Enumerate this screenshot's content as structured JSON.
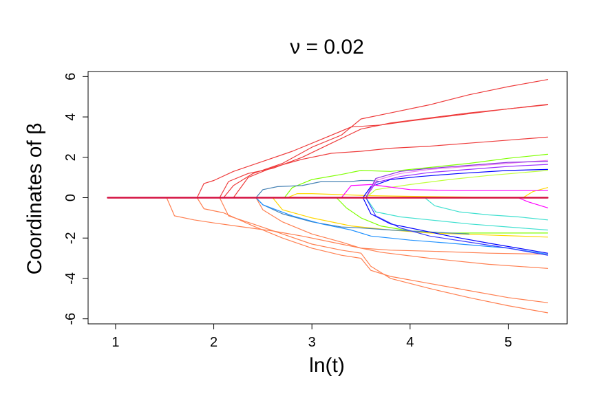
{
  "chart_data": {
    "type": "line",
    "title": "ν = 0.02",
    "xlabel": "ln(t)",
    "ylabel": "Coordinates of β",
    "xlim": [
      0.72,
      5.6
    ],
    "ylim": [
      -6.25,
      6.25
    ],
    "xticks": [
      1,
      2,
      3,
      4,
      5
    ],
    "xtick_labels": [
      "1",
      "2",
      "3",
      "4",
      "5"
    ],
    "yticks": [
      -6,
      -4,
      -2,
      0,
      2,
      4,
      6
    ],
    "ytick_labels": [
      "-6",
      "-4",
      "-2",
      "0",
      "2",
      "4",
      "6"
    ],
    "grid": false,
    "legend": "none",
    "series": [
      {
        "color": "#ee3b3b",
        "points": [
          [
            0.92,
            0
          ],
          [
            2.1,
            0
          ],
          [
            2.2,
            0.6
          ],
          [
            2.4,
            1.2
          ],
          [
            2.7,
            1.7
          ],
          [
            3.0,
            2.5
          ],
          [
            3.3,
            3.1
          ],
          [
            3.5,
            3.9
          ],
          [
            3.8,
            4.2
          ],
          [
            4.2,
            4.6
          ],
          [
            4.6,
            5.1
          ],
          [
            5.0,
            5.5
          ],
          [
            5.4,
            5.85
          ]
        ]
      },
      {
        "color": "#ee3b3b",
        "points": [
          [
            0.92,
            0
          ],
          [
            1.83,
            0
          ],
          [
            1.9,
            0.7
          ],
          [
            2.0,
            0.85
          ],
          [
            2.2,
            1.3
          ],
          [
            2.5,
            1.8
          ],
          [
            2.8,
            2.3
          ],
          [
            3.1,
            2.9
          ],
          [
            3.4,
            3.5
          ],
          [
            3.7,
            3.6
          ],
          [
            4.0,
            3.8
          ],
          [
            4.5,
            4.1
          ],
          [
            5.0,
            4.4
          ],
          [
            5.4,
            4.6
          ]
        ]
      },
      {
        "color": "#ee3b3b",
        "points": [
          [
            0.92,
            0
          ],
          [
            2.2,
            0
          ],
          [
            2.35,
            1.0
          ],
          [
            2.6,
            1.5
          ],
          [
            2.9,
            1.9
          ],
          [
            3.2,
            2.2
          ],
          [
            3.5,
            2.3
          ],
          [
            3.8,
            2.45
          ],
          [
            4.2,
            2.55
          ],
          [
            4.6,
            2.7
          ],
          [
            5.0,
            2.85
          ],
          [
            5.4,
            3.0
          ]
        ]
      },
      {
        "color": "#ee3b3b",
        "points": [
          [
            0.92,
            0
          ],
          [
            2.06,
            0
          ],
          [
            2.15,
            0.8
          ],
          [
            2.35,
            1.2
          ],
          [
            2.6,
            1.45
          ],
          [
            2.9,
            2.0
          ],
          [
            3.2,
            2.7
          ],
          [
            3.5,
            3.4
          ],
          [
            3.8,
            3.7
          ],
          [
            4.2,
            3.95
          ],
          [
            4.6,
            4.2
          ],
          [
            5.0,
            4.4
          ],
          [
            5.4,
            4.62
          ]
        ]
      },
      {
        "color": "#ff7f50",
        "points": [
          [
            0.92,
            0
          ],
          [
            1.52,
            0
          ],
          [
            1.6,
            -0.9
          ],
          [
            1.8,
            -1.1
          ],
          [
            2.0,
            -1.25
          ],
          [
            2.3,
            -1.45
          ],
          [
            2.6,
            -1.65
          ],
          [
            2.9,
            -1.9
          ],
          [
            3.2,
            -2.2
          ],
          [
            3.5,
            -2.5
          ],
          [
            3.8,
            -2.6
          ],
          [
            4.2,
            -2.65
          ],
          [
            4.8,
            -2.75
          ],
          [
            5.4,
            -2.8
          ]
        ]
      },
      {
        "color": "#ff7f50",
        "points": [
          [
            0.92,
            0
          ],
          [
            1.83,
            0
          ],
          [
            1.9,
            -0.55
          ],
          [
            2.1,
            -0.75
          ],
          [
            2.4,
            -1.4
          ],
          [
            2.7,
            -2.0
          ],
          [
            3.0,
            -2.5
          ],
          [
            3.3,
            -2.85
          ],
          [
            3.5,
            -3.0
          ],
          [
            3.6,
            -3.6
          ],
          [
            3.8,
            -3.9
          ],
          [
            4.2,
            -4.25
          ],
          [
            4.6,
            -4.6
          ],
          [
            5.0,
            -4.95
          ],
          [
            5.4,
            -5.2
          ]
        ]
      },
      {
        "color": "#ff7f50",
        "points": [
          [
            0.92,
            0
          ],
          [
            2.06,
            0
          ],
          [
            2.15,
            -0.9
          ],
          [
            2.4,
            -1.3
          ],
          [
            2.7,
            -1.8
          ],
          [
            3.0,
            -2.3
          ],
          [
            3.3,
            -2.6
          ],
          [
            3.5,
            -2.75
          ],
          [
            3.6,
            -3.4
          ],
          [
            3.8,
            -4.0
          ],
          [
            4.2,
            -4.5
          ],
          [
            4.6,
            -4.95
          ],
          [
            5.0,
            -5.35
          ],
          [
            5.4,
            -5.7
          ]
        ]
      },
      {
        "color": "#ff7f50",
        "points": [
          [
            0.92,
            0
          ],
          [
            2.43,
            0
          ],
          [
            2.5,
            -0.6
          ],
          [
            2.7,
            -1.2
          ],
          [
            3.0,
            -1.8
          ],
          [
            3.3,
            -2.2
          ],
          [
            3.5,
            -2.5
          ],
          [
            3.7,
            -2.7
          ],
          [
            4.2,
            -3.0
          ],
          [
            4.8,
            -3.3
          ],
          [
            5.4,
            -3.5
          ]
        ]
      },
      {
        "color": "#ffd700",
        "points": [
          [
            0.92,
            0
          ],
          [
            2.6,
            0
          ],
          [
            2.7,
            -0.6
          ],
          [
            3.0,
            -1.0
          ],
          [
            3.4,
            -1.4
          ],
          [
            3.8,
            -1.6
          ],
          [
            4.2,
            -1.75
          ],
          [
            4.8,
            -1.85
          ],
          [
            5.4,
            -1.95
          ]
        ]
      },
      {
        "color": "#ffd700",
        "points": [
          [
            0.92,
            0
          ],
          [
            2.75,
            0
          ],
          [
            2.85,
            0.2
          ],
          [
            3.0,
            0.2
          ],
          [
            3.3,
            0.15
          ],
          [
            3.6,
            0.1
          ],
          [
            4.2,
            0.05
          ],
          [
            4.8,
            0.02
          ],
          [
            5.4,
            0.0
          ]
        ]
      },
      {
        "color": "#ffd700",
        "points": [
          [
            0.92,
            0
          ],
          [
            5.15,
            0
          ],
          [
            5.25,
            0.3
          ],
          [
            5.4,
            0.5
          ]
        ]
      },
      {
        "color": "#7fff00",
        "points": [
          [
            0.92,
            0
          ],
          [
            2.72,
            0
          ],
          [
            2.8,
            0.5
          ],
          [
            3.0,
            0.9
          ],
          [
            3.3,
            1.15
          ],
          [
            3.5,
            1.35
          ],
          [
            3.8,
            1.3
          ],
          [
            4.2,
            1.5
          ],
          [
            4.6,
            1.7
          ],
          [
            5.0,
            1.95
          ],
          [
            5.4,
            2.15
          ]
        ]
      },
      {
        "color": "#7fff00",
        "points": [
          [
            0.92,
            0
          ],
          [
            3.25,
            0
          ],
          [
            3.35,
            -0.5
          ],
          [
            3.5,
            -1.0
          ],
          [
            3.7,
            -1.4
          ],
          [
            4.0,
            -1.65
          ],
          [
            4.4,
            -1.75
          ],
          [
            5.4,
            -1.75
          ]
        ]
      },
      {
        "color": "#c0ff3e",
        "points": [
          [
            0.92,
            0
          ],
          [
            3.55,
            0
          ],
          [
            3.65,
            0.4
          ],
          [
            4.0,
            0.65
          ],
          [
            4.4,
            0.9
          ],
          [
            4.8,
            1.1
          ],
          [
            5.4,
            1.35
          ]
        ]
      },
      {
        "color": "#4682b4",
        "points": [
          [
            0.92,
            0
          ],
          [
            2.43,
            0
          ],
          [
            2.5,
            0.4
          ],
          [
            2.65,
            0.55
          ],
          [
            2.9,
            0.6
          ],
          [
            3.1,
            0.8
          ],
          [
            3.4,
            0.8
          ],
          [
            3.5,
            0.85
          ],
          [
            3.6,
            0.85
          ],
          [
            3.7,
            0.8
          ]
        ]
      },
      {
        "color": "#4682b4",
        "points": [
          [
            0.92,
            0
          ],
          [
            2.43,
            0
          ],
          [
            2.5,
            -0.35
          ],
          [
            2.7,
            -0.8
          ],
          [
            3.0,
            -1.2
          ],
          [
            3.3,
            -1.45
          ],
          [
            3.5,
            -1.5
          ],
          [
            3.8,
            -1.6
          ],
          [
            4.2,
            -1.7
          ],
          [
            4.6,
            -1.8
          ]
        ]
      },
      {
        "color": "#0000ff",
        "points": [
          [
            0.92,
            0
          ],
          [
            3.52,
            0
          ],
          [
            3.6,
            -0.8
          ],
          [
            3.8,
            -1.3
          ],
          [
            4.0,
            -1.5
          ],
          [
            4.4,
            -1.9
          ],
          [
            4.8,
            -2.25
          ],
          [
            5.4,
            -2.75
          ]
        ]
      },
      {
        "color": "#1e90ff",
        "points": [
          [
            0.92,
            0
          ],
          [
            2.43,
            0
          ],
          [
            2.5,
            -0.35
          ],
          [
            2.8,
            -0.9
          ],
          [
            3.1,
            -1.3
          ],
          [
            3.4,
            -1.6
          ],
          [
            3.6,
            -1.9
          ],
          [
            4.0,
            -2.1
          ],
          [
            4.4,
            -2.25
          ],
          [
            5.0,
            -2.5
          ],
          [
            5.4,
            -2.8
          ]
        ]
      },
      {
        "color": "#0000ff",
        "points": [
          [
            0.92,
            0
          ],
          [
            3.52,
            0
          ],
          [
            3.6,
            0.55
          ],
          [
            3.8,
            0.9
          ],
          [
            4.1,
            1.05
          ],
          [
            4.5,
            1.2
          ],
          [
            5.0,
            1.35
          ],
          [
            5.4,
            1.4
          ]
        ]
      },
      {
        "color": "#40e0d0",
        "points": [
          [
            0.92,
            0
          ],
          [
            3.55,
            0
          ],
          [
            3.65,
            -0.7
          ],
          [
            3.9,
            -0.95
          ],
          [
            4.2,
            -1.1
          ],
          [
            4.6,
            -1.3
          ],
          [
            5.0,
            -1.45
          ],
          [
            5.4,
            -1.6
          ]
        ]
      },
      {
        "color": "#40e0d0",
        "points": [
          [
            0.92,
            0
          ],
          [
            4.15,
            0
          ],
          [
            4.25,
            -0.4
          ],
          [
            4.5,
            -0.7
          ],
          [
            4.8,
            -0.85
          ],
          [
            5.1,
            -0.95
          ],
          [
            5.4,
            -1.1
          ]
        ]
      },
      {
        "color": "#ff00ff",
        "points": [
          [
            0.92,
            0
          ],
          [
            3.3,
            0
          ],
          [
            3.4,
            0.6
          ],
          [
            3.6,
            0.65
          ],
          [
            4.0,
            0.4
          ],
          [
            4.5,
            0.35
          ],
          [
            5.0,
            0.35
          ],
          [
            5.4,
            0.35
          ]
        ]
      },
      {
        "color": "#ff00ff",
        "points": [
          [
            0.92,
            0
          ],
          [
            5.1,
            0
          ],
          [
            5.2,
            -0.2
          ],
          [
            5.3,
            -0.35
          ],
          [
            5.4,
            -0.5
          ]
        ]
      },
      {
        "color": "#9b30ff",
        "points": [
          [
            0.92,
            0
          ],
          [
            3.55,
            0
          ],
          [
            3.65,
            0.75
          ],
          [
            3.9,
            1.05
          ],
          [
            4.2,
            1.25
          ],
          [
            4.6,
            1.4
          ],
          [
            5.0,
            1.55
          ],
          [
            5.4,
            1.65
          ]
        ]
      },
      {
        "color": "#ee82ee",
        "points": [
          [
            0.92,
            0
          ],
          [
            3.55,
            0
          ],
          [
            3.65,
            0.85
          ],
          [
            3.9,
            1.2
          ],
          [
            4.2,
            1.4
          ],
          [
            4.6,
            1.55
          ],
          [
            5.0,
            1.7
          ],
          [
            5.4,
            1.85
          ]
        ]
      },
      {
        "color": "#8a2be2",
        "points": [
          [
            0.92,
            0
          ],
          [
            3.55,
            0
          ],
          [
            3.65,
            0.95
          ],
          [
            3.9,
            1.3
          ],
          [
            4.2,
            1.45
          ],
          [
            4.6,
            1.6
          ],
          [
            5.0,
            1.75
          ],
          [
            5.4,
            1.8
          ]
        ]
      },
      {
        "color": "#3a3aff",
        "points": [
          [
            0.92,
            0
          ],
          [
            3.55,
            0
          ],
          [
            3.65,
            -0.9
          ],
          [
            3.9,
            -1.5
          ],
          [
            4.2,
            -1.9
          ],
          [
            4.6,
            -2.2
          ],
          [
            5.0,
            -2.5
          ],
          [
            5.4,
            -2.85
          ]
        ]
      },
      {
        "color": "#d40f3f",
        "points": [
          [
            0.92,
            0
          ],
          [
            5.4,
            0
          ]
        ]
      }
    ]
  }
}
